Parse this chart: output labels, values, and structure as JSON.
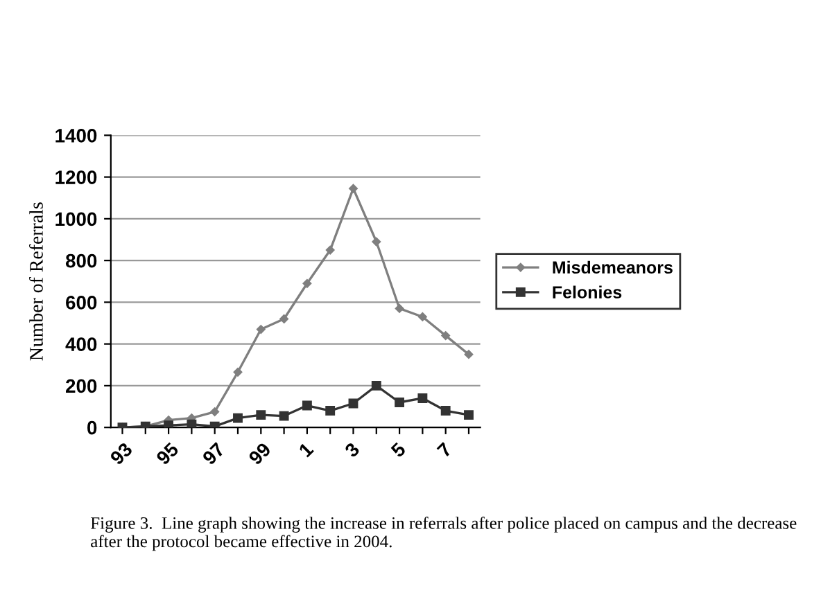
{
  "chart_data": {
    "type": "line",
    "ylabel": "Number of Referrals",
    "categories": [
      "93",
      null,
      "95",
      null,
      "97",
      null,
      "99",
      null,
      "1",
      null,
      "3",
      null,
      "5",
      null,
      "7",
      null
    ],
    "series": [
      {
        "name": "Misdemeanors",
        "color": "#7f7f7f",
        "marker": "diamond",
        "values": [
          0,
          5,
          35,
          45,
          75,
          265,
          470,
          520,
          690,
          850,
          1145,
          890,
          570,
          530,
          440,
          350
        ]
      },
      {
        "name": "Felonies",
        "color": "#333333",
        "marker": "square",
        "values": [
          0,
          5,
          10,
          15,
          5,
          45,
          60,
          55,
          105,
          80,
          115,
          200,
          120,
          140,
          80,
          60
        ]
      }
    ],
    "ylim": [
      0,
      1400
    ],
    "yticks": [
      0,
      200,
      400,
      600,
      800,
      1000,
      1200,
      1400
    ],
    "grid": "y",
    "legend": "right",
    "annotations": [
      "Figure 3.  Line graph showing the increase in referrals after police placed on campus and the decrease after the protocol became effective in 2004."
    ]
  }
}
